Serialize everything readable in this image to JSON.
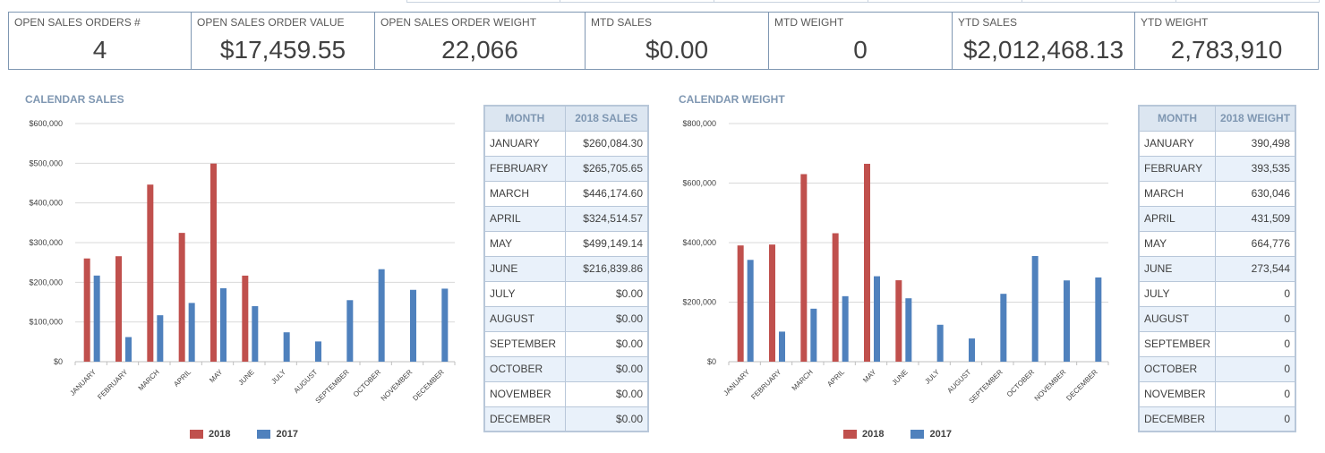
{
  "kpis": [
    {
      "label": "OPEN SALES ORDERS #",
      "value": "4"
    },
    {
      "label": "OPEN SALES ORDER VALUE",
      "value": "$17,459.55"
    },
    {
      "label": "OPEN SALES ORDER WEIGHT",
      "value": "22,066"
    },
    {
      "label": "MTD SALES",
      "value": "$0.00"
    },
    {
      "label": "MTD WEIGHT",
      "value": "0"
    },
    {
      "label": "YTD SALES",
      "value": "$2,012,468.13"
    },
    {
      "label": "YTD WEIGHT",
      "value": "2,783,910"
    }
  ],
  "colors": {
    "series_2018": "#c0504d",
    "series_2017": "#4f81bd",
    "accent": "#7f97b2"
  },
  "chart_data": [
    {
      "type": "bar",
      "title": "CALENDAR SALES",
      "categories": [
        "JANUARY",
        "FEBRUARY",
        "MARCH",
        "APRIL",
        "MAY",
        "JUNE",
        "JULY",
        "AUGUST",
        "SEPTEMBER",
        "OCTOBER",
        "NOVEMBER",
        "DECEMBER"
      ],
      "series": [
        {
          "name": "2018",
          "values": [
            260084.3,
            265705.65,
            446174.6,
            324514.57,
            499149.14,
            216839.86,
            0,
            0,
            0,
            0,
            0,
            0
          ]
        },
        {
          "name": "2017",
          "values": [
            217000,
            62000,
            117000,
            148000,
            185000,
            140000,
            74000,
            51000,
            155000,
            233000,
            181000,
            184000
          ]
        }
      ],
      "ylim": [
        0,
        600000
      ],
      "yticks": [
        "$0",
        "$100,000",
        "$200,000",
        "$300,000",
        "$400,000",
        "$500,000",
        "$600,000"
      ],
      "legend": "bottom",
      "grid": true
    },
    {
      "type": "bar",
      "title": "CALENDAR WEIGHT",
      "categories": [
        "JANUARY",
        "FEBRUARY",
        "MARCH",
        "APRIL",
        "MAY",
        "JUNE",
        "JULY",
        "AUGUST",
        "SEPTEMBER",
        "OCTOBER",
        "NOVEMBER",
        "DECEMBER"
      ],
      "series": [
        {
          "name": "2018",
          "values": [
            390498,
            393535,
            630046,
            431509,
            664776,
            273544,
            0,
            0,
            0,
            0,
            0,
            0
          ]
        },
        {
          "name": "2017",
          "values": [
            342000,
            101000,
            178000,
            220000,
            287000,
            213000,
            124000,
            78000,
            228000,
            355000,
            273000,
            283000
          ]
        }
      ],
      "ylim": [
        0,
        800000
      ],
      "yticks": [
        "$0",
        "$200,000",
        "$400,000",
        "$600,000",
        "$800,000"
      ],
      "legend": "bottom",
      "grid": true
    }
  ],
  "sales_table": {
    "headers": [
      "MONTH",
      "2018 SALES"
    ],
    "rows": [
      [
        "JANUARY",
        "$260,084.30"
      ],
      [
        "FEBRUARY",
        "$265,705.65"
      ],
      [
        "MARCH",
        "$446,174.60"
      ],
      [
        "APRIL",
        "$324,514.57"
      ],
      [
        "MAY",
        "$499,149.14"
      ],
      [
        "JUNE",
        "$216,839.86"
      ],
      [
        "JULY",
        "$0.00"
      ],
      [
        "AUGUST",
        "$0.00"
      ],
      [
        "SEPTEMBER",
        "$0.00"
      ],
      [
        "OCTOBER",
        "$0.00"
      ],
      [
        "NOVEMBER",
        "$0.00"
      ],
      [
        "DECEMBER",
        "$0.00"
      ]
    ]
  },
  "weight_table": {
    "headers": [
      "MONTH",
      "2018 WEIGHT"
    ],
    "rows": [
      [
        "JANUARY",
        "390,498"
      ],
      [
        "FEBRUARY",
        "393,535"
      ],
      [
        "MARCH",
        "630,046"
      ],
      [
        "APRIL",
        "431,509"
      ],
      [
        "MAY",
        "664,776"
      ],
      [
        "JUNE",
        "273,544"
      ],
      [
        "JULY",
        "0"
      ],
      [
        "AUGUST",
        "0"
      ],
      [
        "SEPTEMBER",
        "0"
      ],
      [
        "OCTOBER",
        "0"
      ],
      [
        "NOVEMBER",
        "0"
      ],
      [
        "DECEMBER",
        "0"
      ]
    ]
  }
}
